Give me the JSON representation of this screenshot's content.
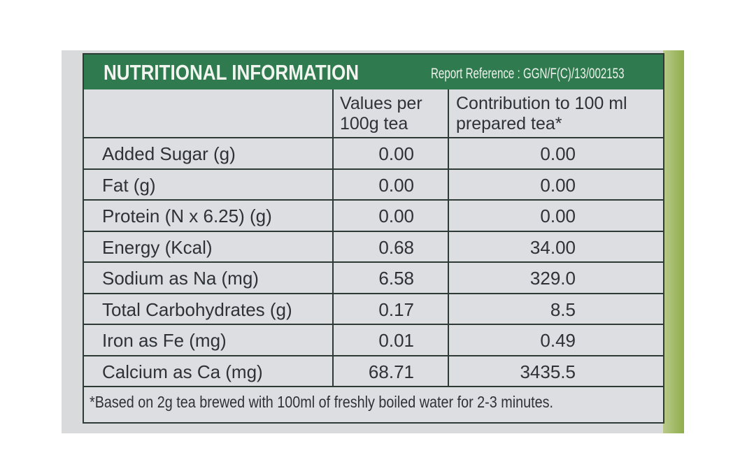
{
  "title": "NUTRITIONAL INFORMATION",
  "report_reference": "Report Reference : GGN/F(C)/13/002153",
  "table": {
    "header": [
      [
        "Values per",
        "100g tea"
      ],
      [
        "Contribution to 100 ml",
        "prepared tea*"
      ]
    ],
    "rows": [
      [
        "Added Sugar (g)",
        "0.00",
        "0.00"
      ],
      [
        "Fat (g)",
        "0.00",
        "0.00"
      ],
      [
        "Protein (N x 6.25) (g)",
        "0.00",
        "0.00"
      ],
      [
        "Energy (Kcal)",
        "0.68",
        "34.00"
      ],
      [
        "Sodium as Na (mg)",
        "6.58",
        "329.0"
      ],
      [
        "Total Carbohydrates (g)",
        "0.17",
        "8.5"
      ],
      [
        "Iron as Fe (mg)",
        "0.01",
        "0.49"
      ],
      [
        "Calcium as Ca (mg)",
        "68.71",
        "3435.5"
      ]
    ]
  },
  "footnote": "*Based on 2g tea brewed with 100ml of freshly boiled water for 2-3 minutes."
}
